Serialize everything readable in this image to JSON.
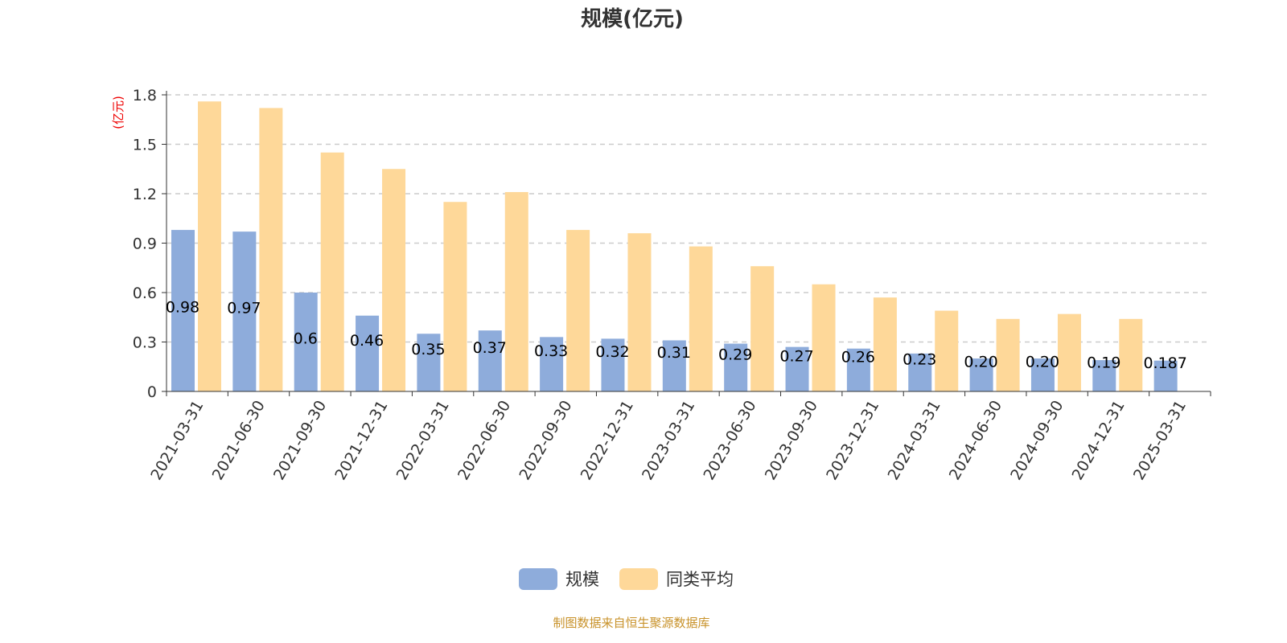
{
  "chart_data": {
    "type": "bar",
    "title": "规模(亿元)",
    "ylabel": "(亿元)",
    "ylim": [
      0,
      1.8
    ],
    "yticks": [
      "0",
      "0.3",
      "0.6",
      "0.9",
      "1.2",
      "1.5",
      "1.8"
    ],
    "grid": true,
    "legend_position": "bottom",
    "categories": [
      "2021-03-31",
      "2021-06-30",
      "2021-09-30",
      "2021-12-31",
      "2022-03-31",
      "2022-06-30",
      "2022-09-30",
      "2022-12-31",
      "2023-03-31",
      "2023-06-30",
      "2023-09-30",
      "2023-12-31",
      "2024-03-31",
      "2024-06-30",
      "2024-09-30",
      "2024-12-31",
      "2025-03-31"
    ],
    "series": [
      {
        "name": "规模",
        "color": "#8eacdb",
        "values": [
          0.98,
          0.97,
          0.6,
          0.46,
          0.35,
          0.37,
          0.33,
          0.32,
          0.31,
          0.29,
          0.27,
          0.26,
          0.23,
          0.2,
          0.2,
          0.19,
          0.187
        ],
        "labels": [
          "0.98",
          "0.97",
          "0.6",
          "0.46",
          "0.35",
          "0.37",
          "0.33",
          "0.32",
          "0.31",
          "0.29",
          "0.27",
          "0.26",
          "0.23",
          "0.20",
          "0.20",
          "0.19",
          "0.187"
        ]
      },
      {
        "name": "同类平均",
        "color": "#fed899",
        "values": [
          1.76,
          1.72,
          1.45,
          1.35,
          1.15,
          1.21,
          0.98,
          0.96,
          0.88,
          0.76,
          0.65,
          0.57,
          0.49,
          0.44,
          0.47,
          0.44,
          null
        ]
      }
    ],
    "source": "制图数据来自恒生聚源数据库"
  }
}
